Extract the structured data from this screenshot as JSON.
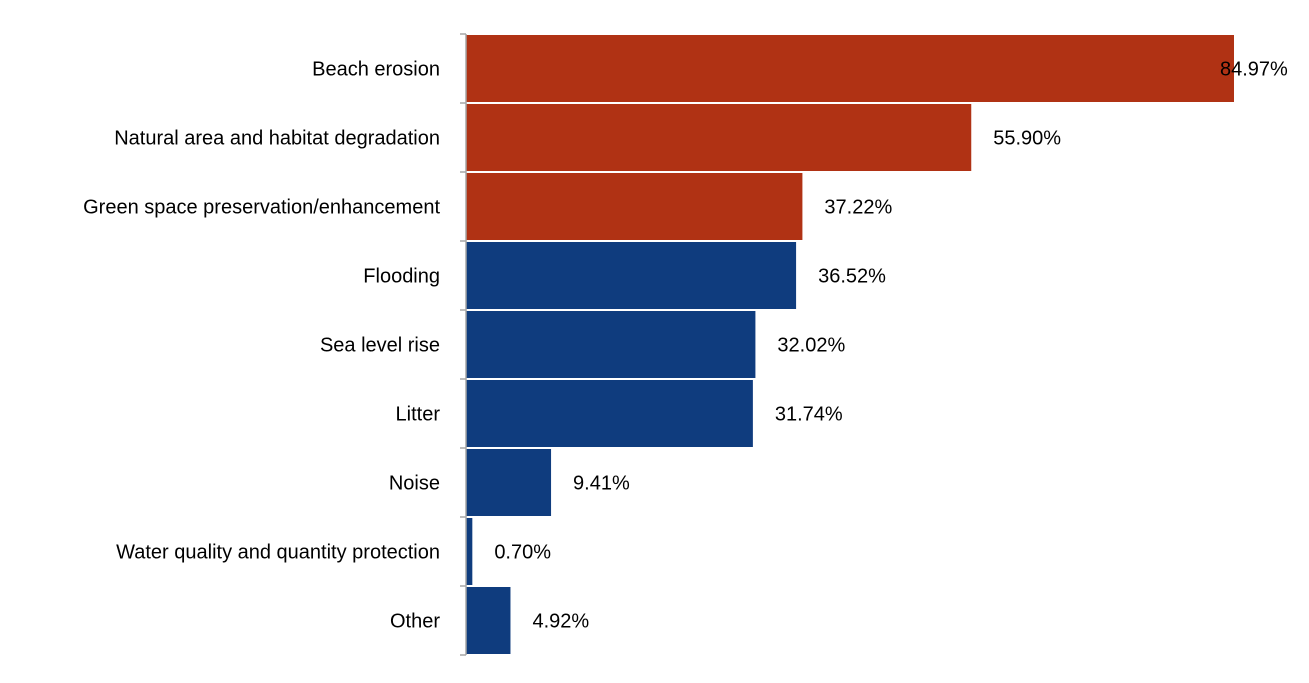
{
  "chart_data": {
    "type": "bar",
    "orientation": "horizontal",
    "title": "",
    "xlabel": "",
    "ylabel": "",
    "xlim": [
      0,
      85
    ],
    "grid": false,
    "legend": "none",
    "categories": [
      "Beach erosion",
      "Natural area and habitat degradation",
      "Green space preservation/enhancement",
      "Flooding",
      "Sea level rise",
      "Litter",
      "Noise",
      "Water quality and quantity protection",
      "Other"
    ],
    "values": [
      84.97,
      55.9,
      37.22,
      36.52,
      32.02,
      31.74,
      9.41,
      0.7,
      4.92
    ],
    "value_labels": [
      "84.97%",
      "55.90%",
      "37.22%",
      "36.52%",
      "32.02%",
      "31.74%",
      "9.41%",
      "0.70%",
      "4.92%"
    ],
    "bar_colors": [
      "#B03214",
      "#B03214",
      "#B03214",
      "#0F3C7E",
      "#0F3C7E",
      "#0F3C7E",
      "#0F3C7E",
      "#0F3C7E",
      "#0F3C7E"
    ],
    "axis_color": "#A6A6A6"
  }
}
